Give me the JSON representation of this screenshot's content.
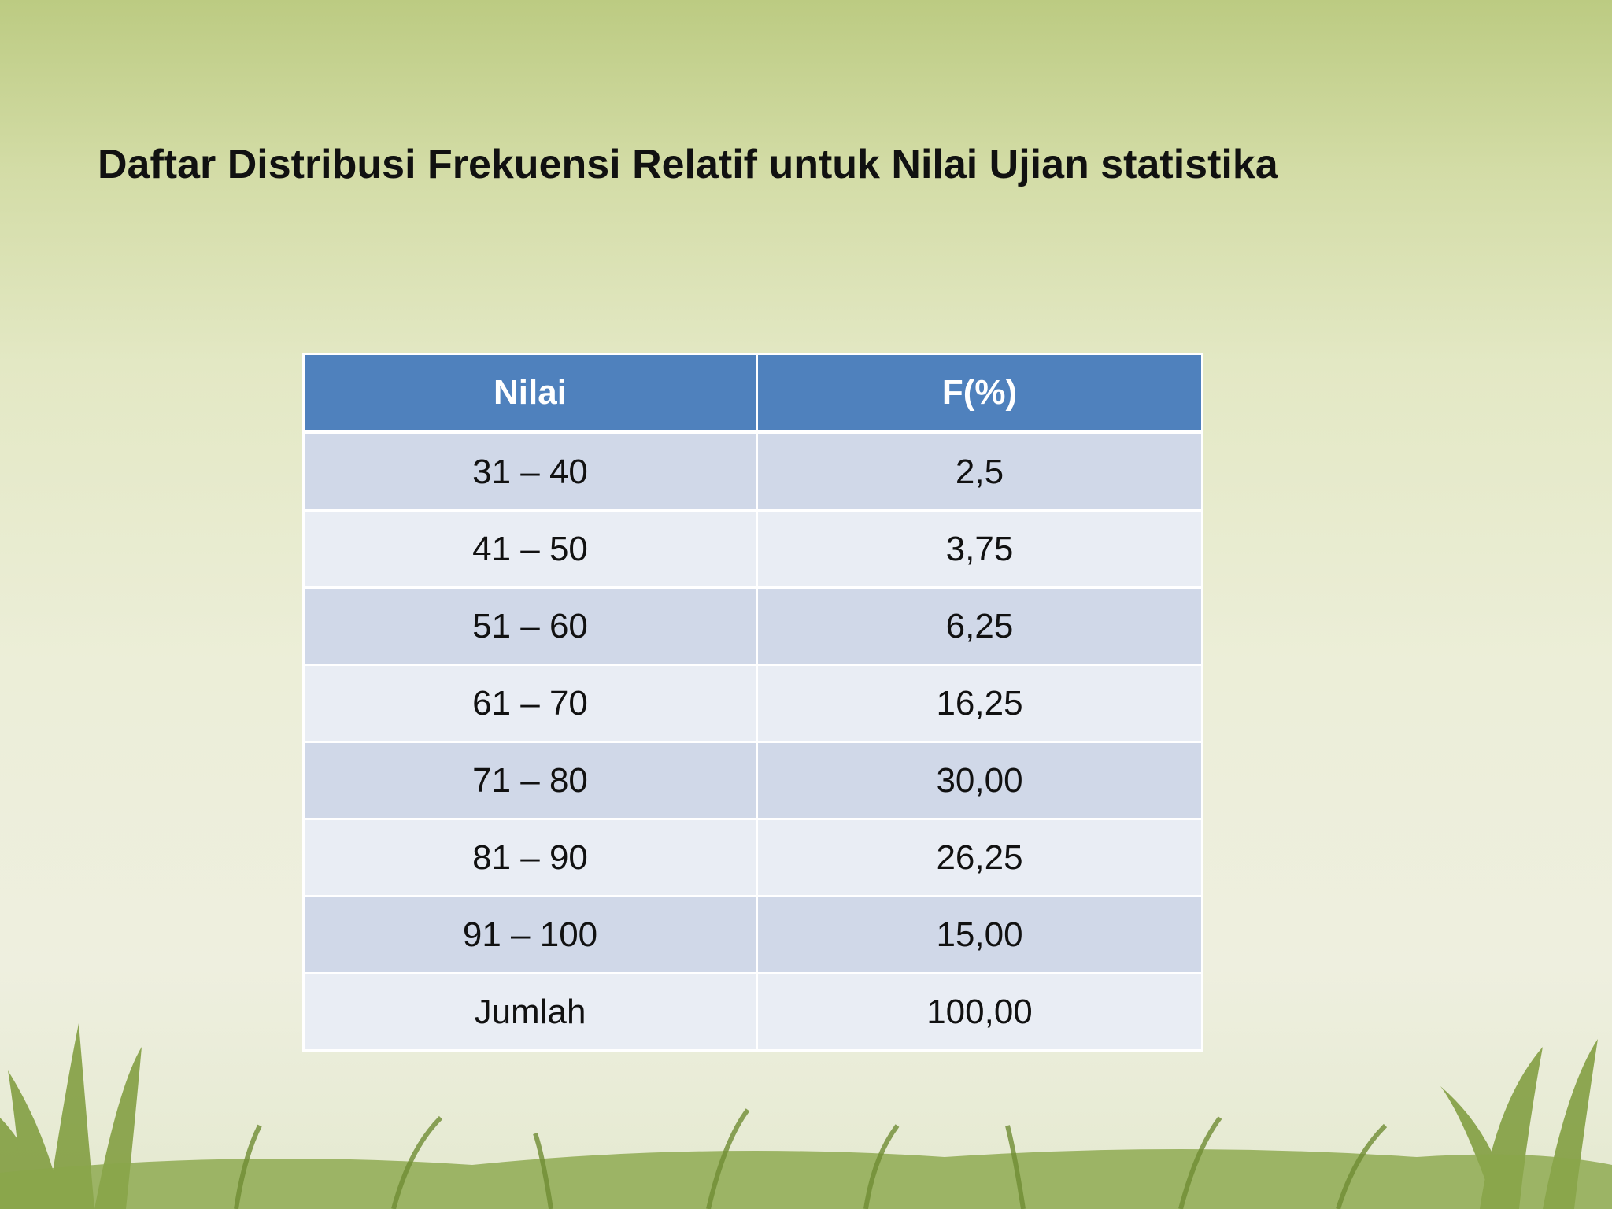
{
  "title": "Daftar Distribusi Frekuensi Relatif untuk Nilai Ujian statistika",
  "table": {
    "header": [
      "Nilai",
      "F(%)"
    ],
    "rows": [
      [
        "31 – 40",
        "2,5"
      ],
      [
        "41 – 50",
        "3,75"
      ],
      [
        "51 – 60",
        "6,25"
      ],
      [
        "61 – 70",
        "16,25"
      ],
      [
        "71 – 80",
        "30,00"
      ],
      [
        "81 – 90",
        "26,25"
      ],
      [
        "91 – 100",
        "15,00"
      ],
      [
        "Jumlah",
        "100,00"
      ]
    ]
  }
}
